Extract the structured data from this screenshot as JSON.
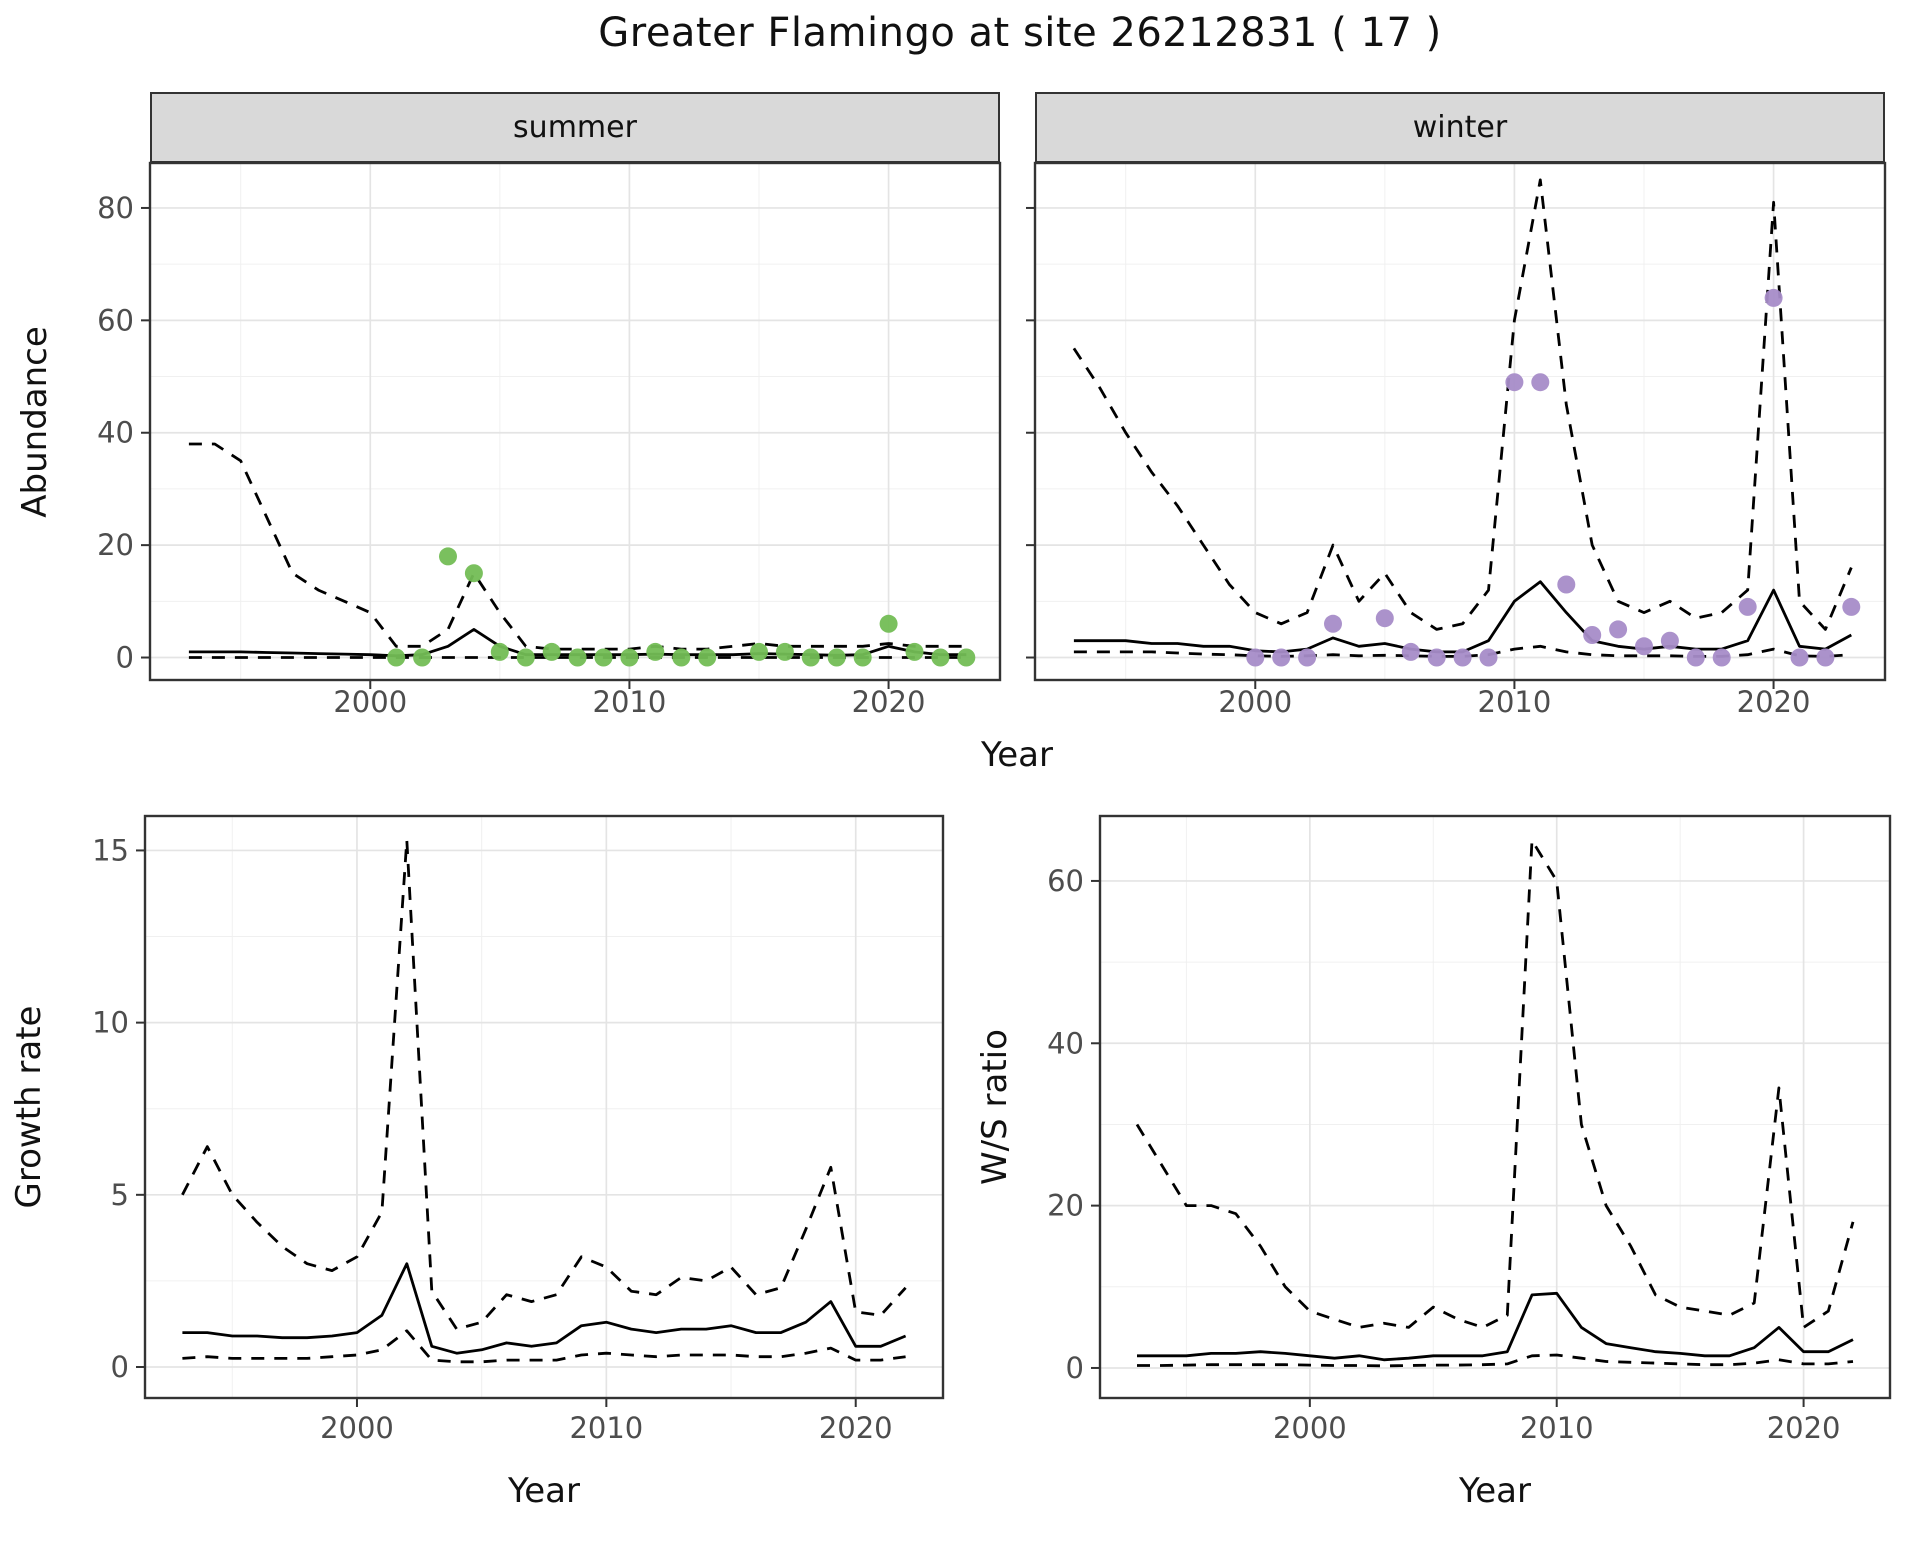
{
  "title": "Greater Flamingo at site 26212831 ( 17 )",
  "facets": [
    "summer",
    "winter"
  ],
  "colors": {
    "summer_point": "#73bd55",
    "winter_point": "#a78cc8",
    "line": "#000000",
    "strip_bg": "#d9d9d9",
    "grid_major": "#e4e4e4",
    "grid_minor": "#f0f0f0",
    "panel_border": "#333333",
    "tick_label": "#4d4d4d",
    "text": "#111111"
  },
  "chart_data": [
    {
      "id": "abundance-summer",
      "type": "line",
      "facet": "summer",
      "ylabel": "Abundance",
      "xlabel": "Year",
      "x_domain": [
        1991.5,
        2024.3
      ],
      "y_domain": [
        -4,
        88
      ],
      "x_ticks": [
        2000,
        2010,
        2020
      ],
      "y_ticks": [
        0,
        20,
        40,
        60,
        80
      ],
      "x_minor_ticks": [
        1995,
        2005,
        2015
      ],
      "y_minor_ticks": [
        10,
        30,
        50,
        70
      ],
      "show_y_tick_labels": true,
      "years": [
        1993,
        1994,
        1995,
        1996,
        1997,
        1998,
        1999,
        2000,
        2001,
        2002,
        2003,
        2004,
        2005,
        2006,
        2007,
        2008,
        2009,
        2010,
        2011,
        2012,
        2013,
        2014,
        2015,
        2016,
        2017,
        2018,
        2019,
        2020,
        2021,
        2022,
        2023
      ],
      "series": [
        {
          "name": "upper-95ci",
          "style": "dashed",
          "values": [
            38,
            38,
            35,
            25,
            15,
            12,
            10,
            8,
            2,
            2,
            5,
            15,
            8,
            2,
            1.5,
            1.5,
            1.5,
            1.5,
            2,
            1.5,
            1.5,
            2,
            2.5,
            2,
            2,
            2,
            2,
            2.5,
            2,
            2,
            2
          ]
        },
        {
          "name": "median",
          "style": "solid",
          "values": [
            1,
            1,
            1,
            0.9,
            0.8,
            0.7,
            0.6,
            0.5,
            0.3,
            0.5,
            2,
            5,
            2,
            0.5,
            0.5,
            0.5,
            0.5,
            0.5,
            0.6,
            0.5,
            0.5,
            0.5,
            0.7,
            0.6,
            0.5,
            0.4,
            0.5,
            2,
            1,
            0.5,
            0.5
          ]
        },
        {
          "name": "lower-95ci",
          "style": "dashed",
          "values": [
            0,
            0,
            0,
            0,
            0,
            0,
            0,
            0,
            0,
            0,
            0,
            0,
            0,
            0,
            0,
            0,
            0,
            0,
            0,
            0,
            0,
            0,
            0,
            0,
            0,
            0,
            0,
            0,
            0,
            0,
            0
          ]
        }
      ],
      "points": {
        "name": "observed-summer",
        "color_key": "summer_point",
        "x": [
          2001,
          2002,
          2003,
          2004,
          2005,
          2006,
          2007,
          2008,
          2009,
          2010,
          2011,
          2012,
          2013,
          2015,
          2016,
          2017,
          2018,
          2019,
          2020,
          2021,
          2022,
          2023
        ],
        "y": [
          0,
          0,
          18,
          15,
          1,
          0,
          1,
          0,
          0,
          0,
          1,
          0,
          0,
          1,
          1,
          0,
          0,
          0,
          6,
          1,
          0,
          0
        ]
      }
    },
    {
      "id": "abundance-winter",
      "type": "line",
      "facet": "winter",
      "x_domain": [
        1991.5,
        2024.3
      ],
      "y_domain": [
        -4,
        88
      ],
      "x_ticks": [
        2000,
        2010,
        2020
      ],
      "y_ticks": [
        0,
        20,
        40,
        60,
        80
      ],
      "x_minor_ticks": [
        1995,
        2005,
        2015
      ],
      "y_minor_ticks": [
        10,
        30,
        50,
        70
      ],
      "show_y_tick_labels": false,
      "years": [
        1993,
        1994,
        1995,
        1996,
        1997,
        1998,
        1999,
        2000,
        2001,
        2002,
        2003,
        2004,
        2005,
        2006,
        2007,
        2008,
        2009,
        2010,
        2011,
        2012,
        2013,
        2014,
        2015,
        2016,
        2017,
        2018,
        2019,
        2020,
        2021,
        2022,
        2023
      ],
      "series": [
        {
          "name": "upper-95ci",
          "style": "dashed",
          "values": [
            55,
            48,
            40,
            33,
            27,
            20,
            13,
            8,
            6,
            8,
            20,
            10,
            15,
            8,
            5,
            6,
            12,
            60,
            85,
            45,
            20,
            10,
            8,
            10,
            7,
            8,
            12,
            81,
            10,
            5,
            16
          ]
        },
        {
          "name": "median",
          "style": "solid",
          "values": [
            3,
            3,
            3,
            2.5,
            2.5,
            2,
            2,
            1.2,
            1,
            1.5,
            3.5,
            2,
            2.5,
            1.5,
            1,
            1,
            3,
            10,
            13.5,
            8,
            3,
            2,
            1.5,
            2,
            1.5,
            1.5,
            3,
            12,
            2,
            1.5,
            4
          ]
        },
        {
          "name": "lower-95ci",
          "style": "dashed",
          "values": [
            1,
            1,
            1,
            1,
            0.8,
            0.6,
            0.5,
            0.3,
            0.2,
            0.3,
            0.5,
            0.3,
            0.4,
            0.3,
            0.2,
            0.2,
            0.5,
            1.5,
            2,
            1,
            0.5,
            0.3,
            0.3,
            0.3,
            0.2,
            0.2,
            0.5,
            1.5,
            0.3,
            0.2,
            0.5
          ]
        }
      ],
      "points": {
        "name": "observed-winter",
        "color_key": "winter_point",
        "x": [
          2000,
          2001,
          2002,
          2003,
          2005,
          2006,
          2007,
          2008,
          2009,
          2010,
          2011,
          2012,
          2013,
          2014,
          2015,
          2016,
          2017,
          2018,
          2019,
          2020,
          2021,
          2022,
          2023
        ],
        "y": [
          0,
          0,
          0,
          6,
          7,
          1,
          0,
          0,
          0,
          49,
          49,
          13,
          4,
          5,
          2,
          3,
          0,
          0,
          9,
          64,
          0,
          0,
          9
        ]
      }
    },
    {
      "id": "growth-rate",
      "type": "line",
      "ylabel": "Growth rate",
      "xlabel": "Year",
      "x_domain": [
        1991.5,
        2023.5
      ],
      "y_domain": [
        -0.9,
        16
      ],
      "x_ticks": [
        2000,
        2010,
        2020
      ],
      "y_ticks": [
        0,
        5,
        10,
        15
      ],
      "x_minor_ticks": [
        1995,
        2005,
        2015
      ],
      "y_minor_ticks": [
        2.5,
        7.5,
        12.5
      ],
      "show_y_tick_labels": true,
      "years": [
        1993,
        1994,
        1995,
        1996,
        1997,
        1998,
        1999,
        2000,
        2001,
        2002,
        2003,
        2004,
        2005,
        2006,
        2007,
        2008,
        2009,
        2010,
        2011,
        2012,
        2013,
        2014,
        2015,
        2016,
        2017,
        2018,
        2019,
        2020,
        2021,
        2022
      ],
      "series": [
        {
          "name": "upper-95ci",
          "style": "dashed",
          "values": [
            5,
            6.4,
            5,
            4.2,
            3.5,
            3,
            2.8,
            3.2,
            4.5,
            15.3,
            2.2,
            1.1,
            1.3,
            2.1,
            1.9,
            2.1,
            3.2,
            2.9,
            2.2,
            2.1,
            2.6,
            2.5,
            2.9,
            2.1,
            2.3,
            4,
            5.8,
            1.6,
            1.5,
            2.3
          ]
        },
        {
          "name": "median",
          "style": "solid",
          "values": [
            1,
            1,
            0.9,
            0.9,
            0.85,
            0.85,
            0.9,
            1,
            1.5,
            3,
            0.6,
            0.4,
            0.5,
            0.7,
            0.6,
            0.7,
            1.2,
            1.3,
            1.1,
            1,
            1.1,
            1.1,
            1.2,
            1,
            1,
            1.3,
            1.9,
            0.6,
            0.6,
            0.9
          ]
        },
        {
          "name": "lower-95ci",
          "style": "dashed",
          "values": [
            0.25,
            0.3,
            0.25,
            0.25,
            0.25,
            0.25,
            0.3,
            0.35,
            0.5,
            1.05,
            0.2,
            0.15,
            0.15,
            0.2,
            0.2,
            0.2,
            0.35,
            0.4,
            0.35,
            0.3,
            0.35,
            0.35,
            0.35,
            0.3,
            0.3,
            0.4,
            0.55,
            0.2,
            0.2,
            0.3
          ]
        }
      ]
    },
    {
      "id": "ws-ratio",
      "type": "line",
      "ylabel": "W/S ratio",
      "xlabel": "Year",
      "x_domain": [
        1991.5,
        2023.5
      ],
      "y_domain": [
        -3.7,
        68
      ],
      "x_ticks": [
        2000,
        2010,
        2020
      ],
      "y_ticks": [
        0,
        20,
        40,
        60
      ],
      "x_minor_ticks": [
        1995,
        2005,
        2015
      ],
      "y_minor_ticks": [
        10,
        30,
        50
      ],
      "show_y_tick_labels": true,
      "years": [
        1993,
        1994,
        1995,
        1996,
        1997,
        1998,
        1999,
        2000,
        2001,
        2002,
        2003,
        2004,
        2005,
        2006,
        2007,
        2008,
        2009,
        2010,
        2011,
        2012,
        2013,
        2014,
        2015,
        2016,
        2017,
        2018,
        2019,
        2020,
        2021,
        2022
      ],
      "series": [
        {
          "name": "upper-95ci",
          "style": "dashed",
          "values": [
            30,
            25,
            20,
            20,
            19,
            15,
            10,
            7,
            6,
            5,
            5.5,
            5,
            7.5,
            6,
            5,
            6.5,
            65,
            60,
            30,
            20,
            15,
            9,
            7.5,
            7,
            6.5,
            8,
            34.5,
            5,
            7,
            18
          ]
        },
        {
          "name": "median",
          "style": "solid",
          "values": [
            1.5,
            1.5,
            1.5,
            1.8,
            1.8,
            2,
            1.8,
            1.5,
            1.2,
            1.5,
            1,
            1.2,
            1.5,
            1.5,
            1.5,
            2,
            9,
            9.2,
            5,
            3,
            2.5,
            2,
            1.8,
            1.5,
            1.5,
            2.5,
            5,
            2,
            2,
            3.5
          ]
        },
        {
          "name": "lower-95ci",
          "style": "dashed",
          "values": [
            0.3,
            0.3,
            0.35,
            0.4,
            0.4,
            0.4,
            0.4,
            0.35,
            0.3,
            0.3,
            0.25,
            0.3,
            0.35,
            0.35,
            0.4,
            0.5,
            1.5,
            1.6,
            1.2,
            0.8,
            0.7,
            0.6,
            0.5,
            0.4,
            0.4,
            0.6,
            1,
            0.5,
            0.5,
            0.8
          ]
        }
      ]
    }
  ]
}
